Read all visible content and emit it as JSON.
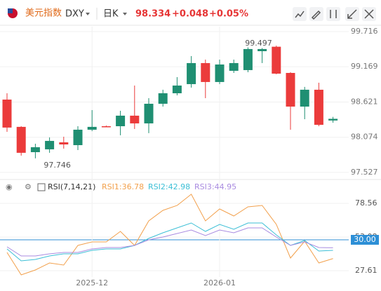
{
  "header": {
    "name": "美元指数",
    "symbol": "DXY",
    "period": "日K",
    "price": "98.334",
    "change": "+0.048",
    "change_pct": "+0.05%"
  },
  "chart_data": [
    {
      "type": "candlestick",
      "categories": [
        null,
        null,
        null,
        null,
        null,
        null,
        "2025-12",
        null,
        null,
        null,
        null,
        null,
        null,
        null,
        null,
        "2026-01",
        null,
        null,
        null,
        null,
        null,
        null,
        null,
        null
      ],
      "open": [
        98.224,
        97.832,
        97.919,
        98.017,
        97.962,
        98.191,
        98.235,
        98.235,
        98.409,
        98.289,
        98.594,
        98.757,
        98.877,
        99.226,
        98.932,
        99.204,
        99.226,
        99.444,
        99.444,
        99.062,
        98.55,
        98.812,
        98.267,
        98.36
      ],
      "high": [
        98.757,
        98.245,
        97.973,
        98.071,
        98.082,
        98.245,
        98.496,
        98.256,
        98.485,
        98.877,
        98.681,
        98.812,
        99.008,
        99.335,
        99.28,
        99.28,
        99.28,
        99.47,
        99.46,
        99.497,
        99.084,
        98.856,
        98.921,
        98.39
      ],
      "low": [
        98.158,
        97.788,
        97.746,
        97.832,
        97.897,
        97.875,
        98.169,
        98.235,
        98.104,
        98.202,
        98.137,
        98.55,
        98.725,
        98.845,
        98.681,
        98.899,
        99.073,
        99.084,
        99.226,
        99.052,
        98.191,
        98.354,
        98.245,
        98.3
      ],
      "close": [
        98.659,
        98.235,
        97.842,
        97.886,
        97.995,
        97.951,
        98.191,
        98.245,
        98.245,
        98.409,
        98.289,
        98.594,
        98.757,
        98.899,
        99.226,
        98.932,
        99.106,
        99.117,
        99.411,
        99.48,
        99.073,
        98.55,
        98.812,
        98.334
      ],
      "up_color": "#eb3b3b",
      "down_color": "#1f8f72",
      "max_label": "99.497",
      "min_label": "97.746",
      "ylim": [
        97.428,
        99.792
      ],
      "yticks": [
        97.527,
        98.074,
        98.621,
        99.169,
        99.716
      ],
      "grid": true
    },
    {
      "type": "line",
      "title": "RSI(7,14,21)",
      "level_label": "30.00",
      "series": [
        {
          "name": "RSI1:36.78",
          "color": "#f2a04c",
          "values": [
            41.4,
            24.42,
            28.13,
            33.44,
            31.85,
            46.71,
            49.37,
            49.37,
            57.33,
            46.71,
            65.29,
            73.25,
            76.97,
            85.46,
            65.29,
            74.31,
            69.01,
            75.91,
            76.97,
            62.64,
            37.16,
            49.9,
            33.44,
            36.78
          ]
        },
        {
          "name": "RSI2:42.98",
          "color": "#3cbfd6",
          "values": [
            44.06,
            35.03,
            36.1,
            38.75,
            40.34,
            40.34,
            43.0,
            44.06,
            44.06,
            46.71,
            52.02,
            56.27,
            59.98,
            63.7,
            57.33,
            62.64,
            58.92,
            63.7,
            63.7,
            54.67,
            46.71,
            50.43,
            42.47,
            42.98
          ]
        },
        {
          "name": "RSI3:44.95",
          "color": "#a98be0",
          "values": [
            45.65,
            38.75,
            38.75,
            40.34,
            41.4,
            41.4,
            44.06,
            45.12,
            45.12,
            46.71,
            50.96,
            53.08,
            55.74,
            58.39,
            54.14,
            58.39,
            56.27,
            59.98,
            59.98,
            53.08,
            46.71,
            49.37,
            45.12,
            44.95
          ]
        }
      ],
      "ylim": [
        12.21,
        86.52
      ],
      "yticks": [
        27.61,
        53.08,
        78.56
      ],
      "grid": true
    }
  ]
}
